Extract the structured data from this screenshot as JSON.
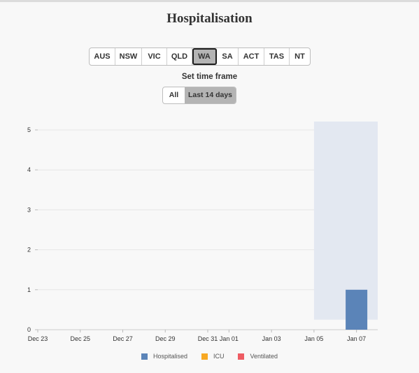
{
  "title": "Hospitalisation",
  "state_tabs": [
    "AUS",
    "NSW",
    "VIC",
    "QLD",
    "WA",
    "SA",
    "ACT",
    "TAS",
    "NT"
  ],
  "active_state": "WA",
  "timeframe": {
    "label": "Set time frame",
    "options": [
      "All",
      "Last 14 days"
    ],
    "active": "Last 14 days"
  },
  "colors": {
    "hospitalised": "#5b84b8",
    "icu": "#f7a822",
    "ventilated": "#ee5c63",
    "highlight": "#e3e8f1"
  },
  "chart_data": {
    "type": "bar",
    "x_tick_labels": [
      "Dec 23",
      "Dec 25",
      "Dec 27",
      "Dec 29",
      "Dec 31",
      "Jan 01",
      "Jan 03",
      "Jan 05",
      "Jan 07"
    ],
    "x_tick_dates": [
      "2021-12-23",
      "2021-12-25",
      "2021-12-27",
      "2021-12-29",
      "2021-12-31",
      "2022-01-01",
      "2022-01-03",
      "2022-01-05",
      "2022-01-07"
    ],
    "y_ticks": [
      0,
      1,
      2,
      3,
      4,
      5
    ],
    "ylim": [
      0,
      5
    ],
    "highlight_range": [
      "2022-01-05",
      "2022-01-08"
    ],
    "series": [
      {
        "name": "Hospitalised",
        "color": "#5b84b8",
        "points": [
          {
            "x": "2022-01-06",
            "y": 1
          }
        ]
      },
      {
        "name": "ICU",
        "color": "#f7a822",
        "points": []
      },
      {
        "name": "Ventilated",
        "color": "#ee5c63",
        "points": []
      }
    ],
    "legend_position": "bottom"
  }
}
